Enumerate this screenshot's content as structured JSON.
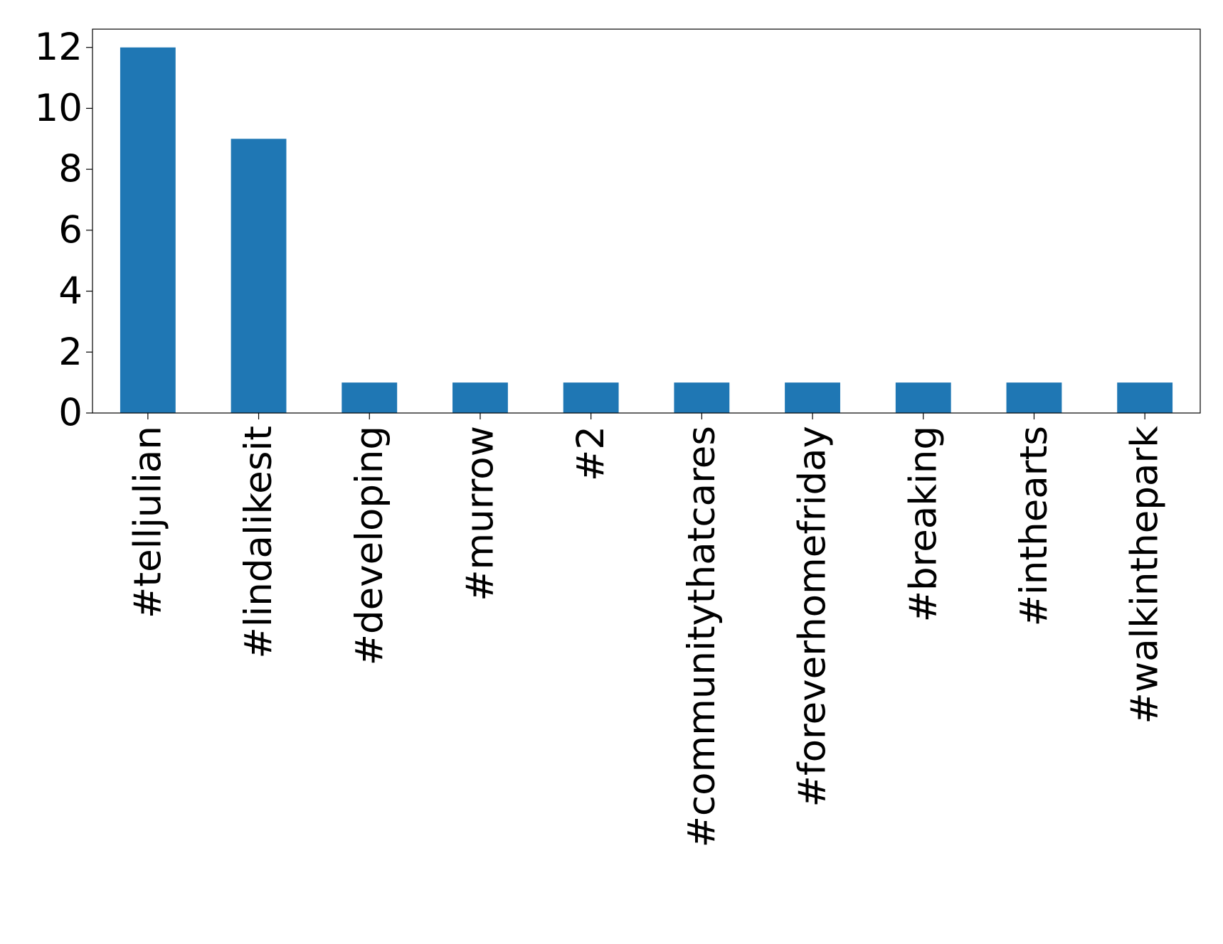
{
  "chart_data": {
    "type": "bar",
    "categories": [
      "#telljulian",
      "#lindalikesit",
      "#developing",
      "#murrow",
      "#2",
      "#communitythatcares",
      "#foreverhomefriday",
      "#breaking",
      "#inthearts",
      "#walkinthepark"
    ],
    "values": [
      12,
      9,
      1,
      1,
      1,
      1,
      1,
      1,
      1,
      1
    ],
    "color": "#1f77b4",
    "ylim": [
      0,
      12.6
    ],
    "yticks": [
      0,
      2,
      4,
      6,
      8,
      10,
      12
    ],
    "grid": false
  }
}
